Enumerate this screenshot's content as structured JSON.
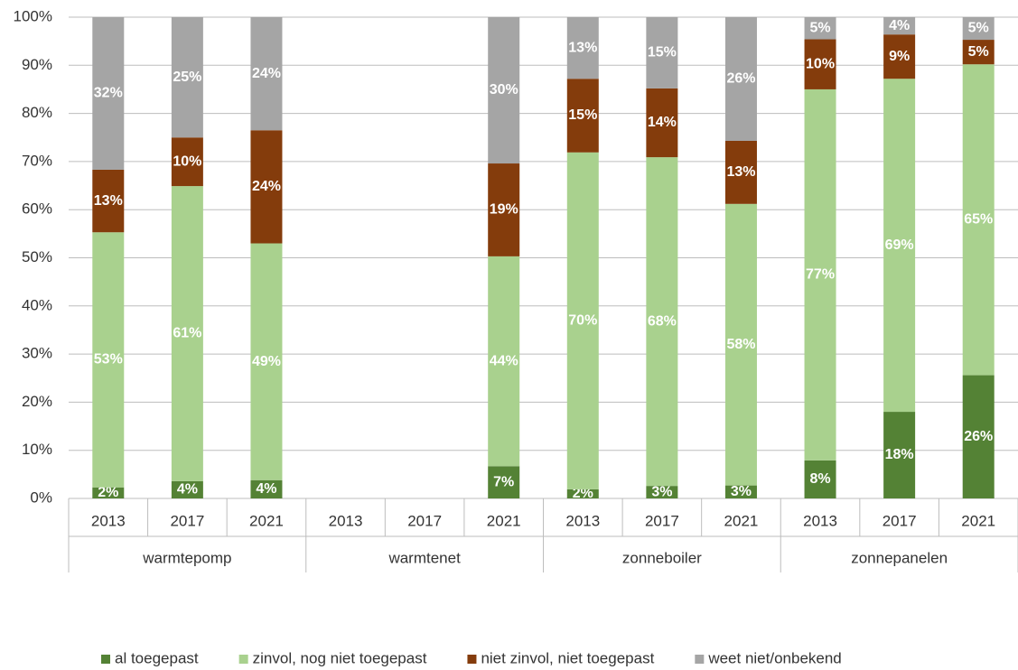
{
  "chart_data": {
    "type": "stacked_bar",
    "groups": [
      "warmtepomp",
      "warmtenet",
      "zonneboiler",
      "zonnepanelen"
    ],
    "categories": [
      "2013",
      "2017",
      "2021",
      "2013",
      "2017",
      "2021",
      "2013",
      "2017",
      "2021",
      "2013",
      "2017",
      "2021"
    ],
    "series": [
      {
        "name": "al toegepast",
        "color": "#548235",
        "values": [
          2.3,
          3.6,
          3.8,
          null,
          null,
          6.7,
          1.9,
          2.6,
          2.7,
          7.9,
          18.0,
          25.6
        ],
        "value_labels": [
          "2%",
          "4%",
          "4%",
          null,
          null,
          "7%",
          "2%",
          "3%",
          "3%",
          "8%",
          "18%",
          "26%"
        ]
      },
      {
        "name": "zinvol, nog niet toegepast",
        "color": "#a9d18e",
        "values": [
          53.0,
          61.3,
          49.2,
          null,
          null,
          43.6,
          70.0,
          68.3,
          58.5,
          77.1,
          69.2,
          64.6
        ],
        "value_labels": [
          "53%",
          "61%",
          "49%",
          null,
          null,
          "44%",
          "70%",
          "68%",
          "58%",
          "77%",
          "69%",
          "65%"
        ]
      },
      {
        "name": "niet zinvol, niet toegepast",
        "color": "#843c0c",
        "values": [
          13.0,
          10.1,
          23.5,
          null,
          null,
          19.3,
          15.3,
          14.3,
          13.1,
          10.4,
          9.2,
          5.1
        ],
        "value_labels": [
          "13%",
          "10%",
          "24%",
          null,
          null,
          "19%",
          "15%",
          "14%",
          "13%",
          "10%",
          "9%",
          "5%"
        ]
      },
      {
        "name": "weet niet/onbekend",
        "color": "#a5a5a5",
        "values": [
          31.7,
          25.0,
          23.5,
          null,
          null,
          30.4,
          12.8,
          14.8,
          25.7,
          4.6,
          3.6,
          4.7
        ],
        "value_labels": [
          "32%",
          "25%",
          "24%",
          null,
          null,
          "30%",
          "13%",
          "15%",
          "26%",
          "5%",
          "4%",
          "5%"
        ]
      }
    ],
    "ylim": [
      0,
      100
    ],
    "yticks": [
      {
        "value": 0,
        "label": "0%"
      },
      {
        "value": 10,
        "label": "10%"
      },
      {
        "value": 20,
        "label": "20%"
      },
      {
        "value": 30,
        "label": "30%"
      },
      {
        "value": 40,
        "label": "40%"
      },
      {
        "value": 50,
        "label": "50%"
      },
      {
        "value": 60,
        "label": "60%"
      },
      {
        "value": 70,
        "label": "70%"
      },
      {
        "value": 80,
        "label": "80%"
      },
      {
        "value": 90,
        "label": "90%"
      },
      {
        "value": 100,
        "label": "100%"
      }
    ],
    "grid": true,
    "legend": "bottom"
  }
}
